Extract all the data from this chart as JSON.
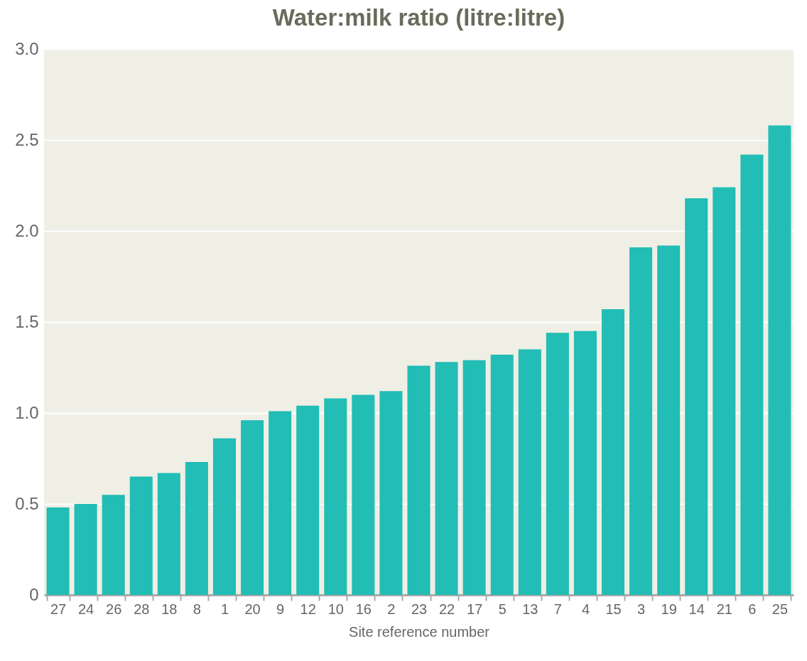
{
  "chart_data": {
    "type": "bar",
    "title": "Water:milk ratio (litre:litre)",
    "xlabel": "Site reference number",
    "categories": [
      "27",
      "24",
      "26",
      "28",
      "18",
      "8",
      "1",
      "20",
      "9",
      "12",
      "10",
      "16",
      "2",
      "23",
      "22",
      "17",
      "5",
      "13",
      "7",
      "4",
      "15",
      "3",
      "19",
      "14",
      "21",
      "6",
      "25"
    ],
    "values": [
      0.48,
      0.5,
      0.55,
      0.65,
      0.67,
      0.73,
      0.86,
      0.96,
      1.01,
      1.04,
      1.08,
      1.1,
      1.12,
      1.26,
      1.28,
      1.29,
      1.32,
      1.35,
      1.44,
      1.45,
      1.57,
      1.91,
      1.92,
      2.18,
      2.24,
      2.42,
      2.58
    ],
    "color": "#22bdb5",
    "ylim": [
      0,
      3
    ],
    "yticks": [
      0,
      0.5,
      {
        "value": 1,
        "label": "1.0"
      },
      1.5,
      {
        "value": 2,
        "label": "2.0"
      },
      2.5,
      {
        "value": 3,
        "label": "3.0"
      }
    ],
    "grid": "y"
  }
}
